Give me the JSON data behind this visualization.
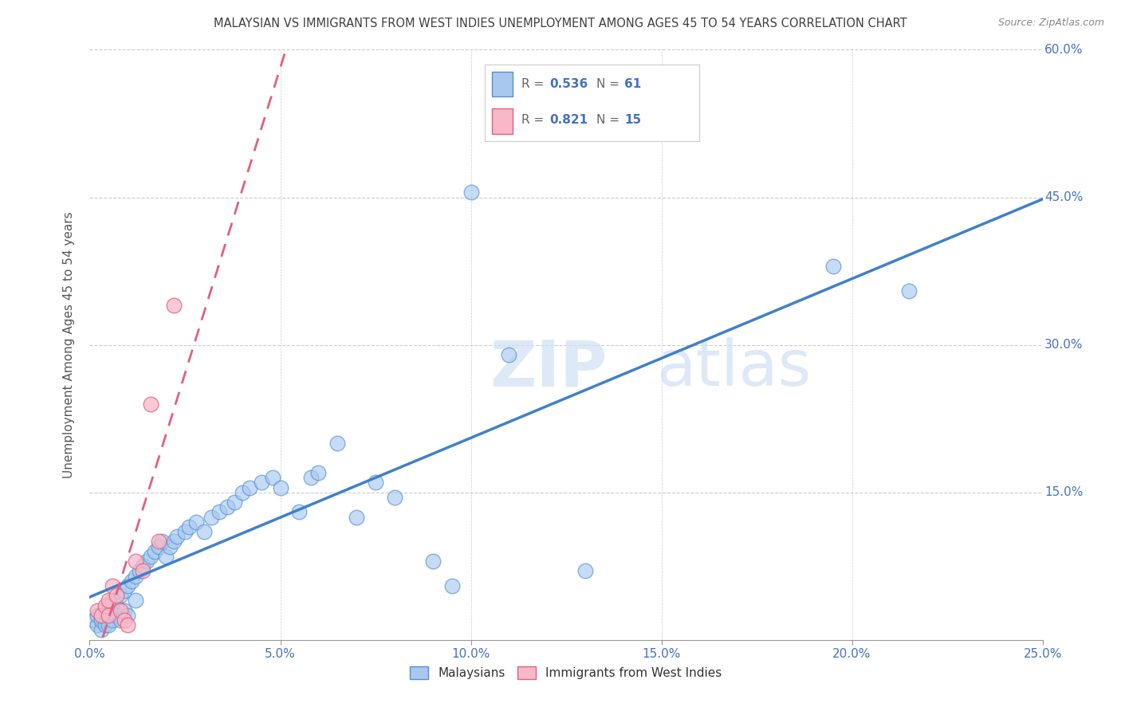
{
  "title": "MALAYSIAN VS IMMIGRANTS FROM WEST INDIES UNEMPLOYMENT AMONG AGES 45 TO 54 YEARS CORRELATION CHART",
  "source": "Source: ZipAtlas.com",
  "ylabel": "Unemployment Among Ages 45 to 54 years",
  "xlim": [
    0.0,
    0.25
  ],
  "ylim": [
    0.0,
    0.6
  ],
  "xticks": [
    0.0,
    0.05,
    0.1,
    0.15,
    0.2,
    0.25
  ],
  "xticklabels": [
    "0.0%",
    "5.0%",
    "10.0%",
    "15.0%",
    "20.0%",
    "25.0%"
  ],
  "yticks": [
    0.15,
    0.3,
    0.45,
    0.6
  ],
  "yticklabels": [
    "15.0%",
    "30.0%",
    "45.0%",
    "60.0%"
  ],
  "malaysians_x": [
    0.001,
    0.002,
    0.002,
    0.003,
    0.003,
    0.004,
    0.004,
    0.005,
    0.005,
    0.005,
    0.006,
    0.006,
    0.007,
    0.007,
    0.008,
    0.008,
    0.009,
    0.009,
    0.01,
    0.01,
    0.011,
    0.012,
    0.012,
    0.013,
    0.014,
    0.015,
    0.016,
    0.017,
    0.018,
    0.019,
    0.02,
    0.021,
    0.022,
    0.023,
    0.025,
    0.026,
    0.028,
    0.03,
    0.032,
    0.034,
    0.036,
    0.038,
    0.04,
    0.042,
    0.045,
    0.048,
    0.05,
    0.055,
    0.058,
    0.06,
    0.065,
    0.07,
    0.075,
    0.08,
    0.09,
    0.095,
    0.1,
    0.11,
    0.13,
    0.195,
    0.215
  ],
  "malaysians_y": [
    0.02,
    0.015,
    0.025,
    0.01,
    0.02,
    0.015,
    0.03,
    0.025,
    0.015,
    0.035,
    0.02,
    0.04,
    0.025,
    0.035,
    0.02,
    0.045,
    0.03,
    0.05,
    0.025,
    0.055,
    0.06,
    0.04,
    0.065,
    0.07,
    0.075,
    0.08,
    0.085,
    0.09,
    0.095,
    0.1,
    0.085,
    0.095,
    0.1,
    0.105,
    0.11,
    0.115,
    0.12,
    0.11,
    0.125,
    0.13,
    0.135,
    0.14,
    0.15,
    0.155,
    0.16,
    0.165,
    0.155,
    0.13,
    0.165,
    0.17,
    0.2,
    0.125,
    0.16,
    0.145,
    0.08,
    0.055,
    0.455,
    0.29,
    0.07,
    0.38,
    0.355
  ],
  "westindies_x": [
    0.002,
    0.003,
    0.004,
    0.005,
    0.005,
    0.006,
    0.007,
    0.008,
    0.009,
    0.01,
    0.012,
    0.014,
    0.016,
    0.018,
    0.022
  ],
  "westindies_y": [
    0.03,
    0.025,
    0.035,
    0.04,
    0.025,
    0.055,
    0.045,
    0.03,
    0.02,
    0.015,
    0.08,
    0.07,
    0.24,
    0.1,
    0.34
  ],
  "malaysians_color": "#a8c8f0",
  "westindies_color": "#f8b8c8",
  "malaysians_edge_color": "#5090d0",
  "westindies_edge_color": "#e06080",
  "malaysians_trend_color": "#4080cc",
  "westindies_trend_color": "#e06080",
  "title_color": "#404040",
  "tick_label_color": "#4472c4",
  "grid_color": "#cccccc",
  "watermark_zip": "ZIP",
  "watermark_atlas": "atlas",
  "R_val1": "0.536",
  "N_val1": "61",
  "R_val2": "0.821",
  "N_val2": "15",
  "legend_label1": "Malaysians",
  "legend_label2": "Immigrants from West Indies"
}
